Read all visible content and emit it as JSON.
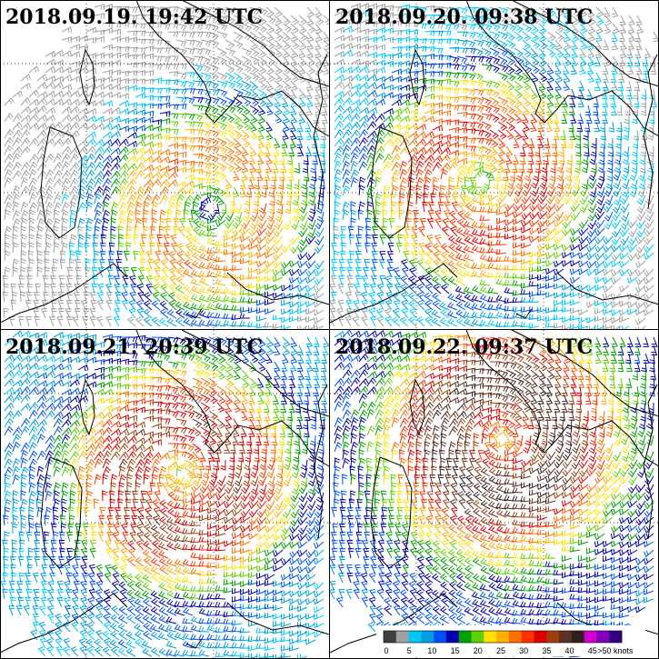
{
  "panels": [
    {
      "title": "2018.09.19. 19:42 UTC"
    },
    {
      "title": "2018.09.20. 09:38 UTC"
    },
    {
      "title": "2018.09.21. 20:39 UTC"
    },
    {
      "title": "2018.09.22. 09:37 UTC"
    }
  ],
  "colorbar": {
    "labels": [
      "0",
      "5",
      "10",
      "15",
      "20",
      "25",
      "30",
      "35",
      "40",
      "45",
      ">50 knots"
    ],
    "colors": [
      "#404040",
      "#a0a0a0",
      "#00c8ff",
      "#00a0e0",
      "#0050ff",
      "#0000b0",
      "#00a000",
      "#60d000",
      "#ffe000",
      "#ffb000",
      "#ff7000",
      "#ff3000",
      "#e00000",
      "#a04010",
      "#603020",
      "#302020",
      "#d000d0",
      "#8000c0",
      "#300080"
    ]
  }
}
